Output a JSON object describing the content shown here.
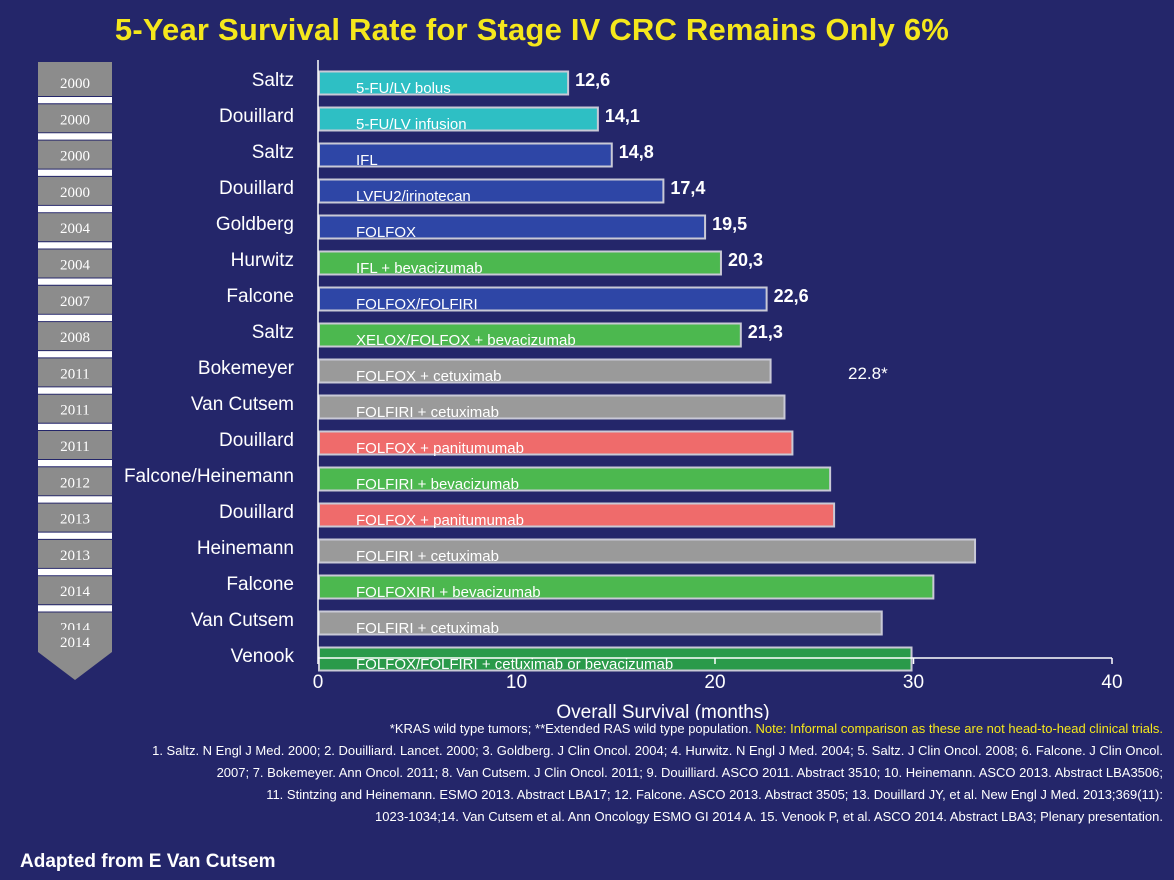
{
  "title": "5-Year Survival Rate for Stage IV CRC Remains Only 6%",
  "chart_data": {
    "type": "bar",
    "orientation": "horizontal",
    "xlabel": "Overall Survival (months)",
    "xlim": [
      0,
      40
    ],
    "xticks": [
      0,
      10,
      20,
      30,
      40
    ],
    "bars": [
      {
        "author": "Saltz",
        "year": "2000",
        "regimen": "5-FU/LV bolus",
        "value": 12.6,
        "value_label": "12,6",
        "color": "#2ebfc4"
      },
      {
        "author": "Douillard",
        "year": "2000",
        "regimen": "5-FU/LV infusion",
        "value": 14.1,
        "value_label": "14,1",
        "color": "#2ebfc4"
      },
      {
        "author": "Saltz",
        "year": "2000",
        "regimen": "IFL",
        "value": 14.8,
        "value_label": "14,8",
        "color": "#2e46a6"
      },
      {
        "author": "Douillard",
        "year": "2000",
        "regimen": "LVFU2/irinotecan",
        "value": 17.4,
        "value_label": "17,4",
        "color": "#2e46a6"
      },
      {
        "author": "Goldberg",
        "year": "2004",
        "regimen": "FOLFOX",
        "value": 19.5,
        "value_label": "19,5",
        "color": "#2e46a6"
      },
      {
        "author": "Hurwitz",
        "year": "2004",
        "regimen": "IFL + bevacizumab",
        "value": 20.3,
        "value_label": "20,3",
        "color": "#4cb84f"
      },
      {
        "author": "Falcone",
        "year": "2007",
        "regimen": "FOLFOX/FOLFIRI",
        "value": 22.6,
        "value_label": "22,6",
        "color": "#2e46a6"
      },
      {
        "author": "Saltz",
        "year": "2008",
        "regimen": "XELOX/FOLFOX + bevacizumab",
        "value": 21.3,
        "value_label": "21,3",
        "color": "#4cb84f"
      },
      {
        "author": "Bokemeyer",
        "year": "2011",
        "regimen": "FOLFOX + cetuximab",
        "value": 22.8,
        "value_label": "22.8*",
        "color": "#9a9a9a"
      },
      {
        "author": "Van Cutsem",
        "year": "2011",
        "regimen": "FOLFIRI + cetuximab",
        "value": 23.5,
        "value_label": "",
        "color": "#9a9a9a"
      },
      {
        "author": "Douillard",
        "year": "2011",
        "regimen": "FOLFOX + panitumumab",
        "value": 23.9,
        "value_label": "",
        "color": "#ef6b6b"
      },
      {
        "author": "Falcone/Heinemann",
        "year": "2012",
        "regimen": "FOLFIRI + bevacizumab",
        "value": 25.8,
        "value_label": "",
        "color": "#4cb84f"
      },
      {
        "author": "Douillard",
        "year": "2013",
        "regimen": "FOLFOX + panitumumab",
        "value": 26.0,
        "value_label": "",
        "color": "#ef6b6b"
      },
      {
        "author": "Heinemann",
        "year": "2013",
        "regimen": "FOLFIRI + cetuximab",
        "value": 33.1,
        "value_label": "",
        "color": "#9a9a9a"
      },
      {
        "author": "Falcone",
        "year": "2014",
        "regimen": "FOLFOXIRI + bevacizumab",
        "value": 31.0,
        "value_label": "",
        "color": "#4cb84f"
      },
      {
        "author": "Van Cutsem",
        "year": "2014",
        "regimen": "FOLFIRI + cetuximab",
        "value": 28.4,
        "value_label": "",
        "color": "#9a9a9a"
      },
      {
        "author": "Venook",
        "year": "",
        "regimen": "FOLFOX/FOLFIRI + cetuximab or bevacizumab",
        "value": 29.9,
        "value_label": "",
        "color": "#2a9a4a"
      }
    ]
  },
  "timeline_years": [
    "2000",
    "2000",
    "2000",
    "2000",
    "2004",
    "2004",
    "2007",
    "2008",
    "2011",
    "2011",
    "2011",
    "2012",
    "2013",
    "2013",
    "2014",
    "2014"
  ],
  "footnotes": {
    "kras": "*KRAS wild type tumors; **Extended RAS wild type population.",
    "note": "Note: Informal comparison as these are not head-to-head clinical trials.",
    "line1": "1. Saltz. N Engl J Med. 2000; 2. Douilliard. Lancet. 2000; 3. Goldberg. J Clin Oncol. 2004; 4. Hurwitz. N Engl J Med. 2004; 5. Saltz. J Clin Oncol. 2008; 6. Falcone. J Clin Oncol.",
    "line2": "2007; 7. Bokemeyer. Ann Oncol. 2011; 8. Van Cutsem. J Clin Oncol. 2011; 9. Douilliard. ASCO 2011. Abstract 3510; 10. Heinemann. ASCO 2013. Abstract LBA3506;",
    "line3": "11. Stintzing and Heinemann. ESMO 2013. Abstract LBA17; 12. Falcone. ASCO 2013. Abstract 3505; 13. Douillard JY, et al. New Engl J Med. 2013;369(11):",
    "line4": "1023-1034;14.  Van Cutsem et al. Ann Oncology ESMO GI 2014 A. 15.  Venook P, et al. ASCO 2014. Abstract LBA3; Plenary presentation."
  },
  "credit": "Adapted from E Van Cutsem"
}
